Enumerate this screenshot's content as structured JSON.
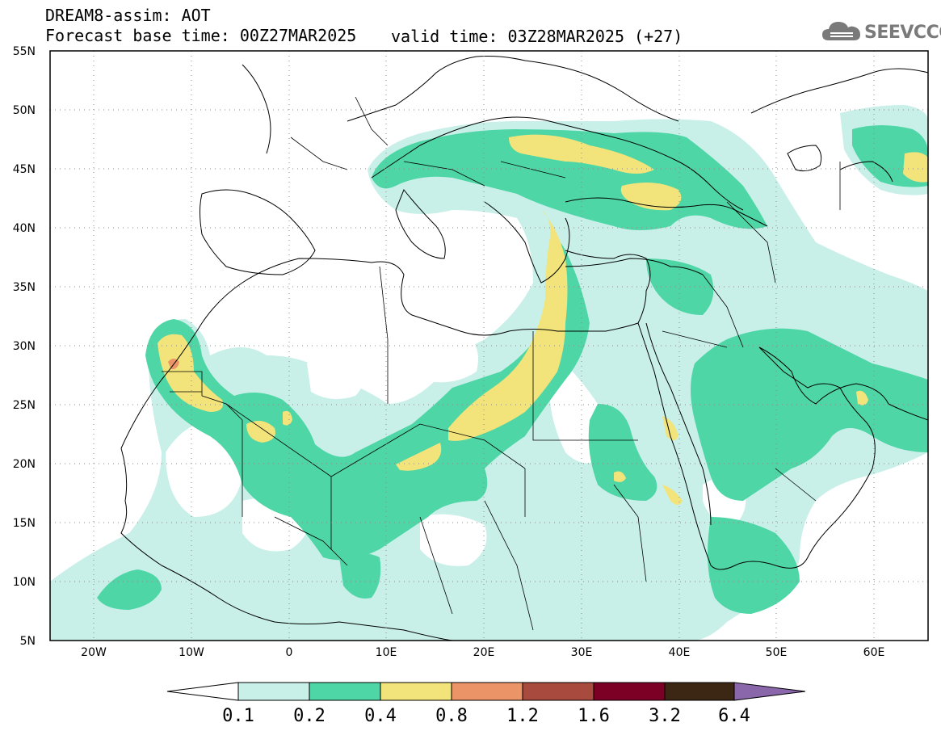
{
  "header": {
    "title": "DREAM8-assim: AOT",
    "base_time": "Forecast base time: 00Z27MAR2025",
    "valid_time": "valid time: 03Z28MAR2025 (+27)"
  },
  "logo": {
    "text": "SEEVCCC",
    "icon": "cloud-icon"
  },
  "map": {
    "lon_range": [
      -25,
      65
    ],
    "lat_range": [
      5,
      55
    ],
    "lat_ticks": [
      "5N",
      "10N",
      "15N",
      "20N",
      "25N",
      "30N",
      "35N",
      "40N",
      "45N",
      "50N",
      "55N"
    ],
    "lon_ticks": [
      "20W",
      "10W",
      "0",
      "10E",
      "20E",
      "30E",
      "40E",
      "50E",
      "60E"
    ],
    "grid": "dotted"
  },
  "colorbar": {
    "labels": [
      "0.1",
      "0.2",
      "0.4",
      "0.8",
      "1.2",
      "1.6",
      "3.2",
      "6.4"
    ],
    "colors": [
      "#ffffff",
      "#c8f0e8",
      "#4fd6a6",
      "#f2e47a",
      "#ea9468",
      "#a84a3e",
      "#7c0025",
      "#3c2614",
      "#8a66aa"
    ]
  },
  "aot_levels": {
    "low": "#c8f0e8",
    "moderate": "#4fd6a6",
    "high": "#f2e47a",
    "very_high": "#ea9468",
    "extreme": "#a84a3e"
  }
}
